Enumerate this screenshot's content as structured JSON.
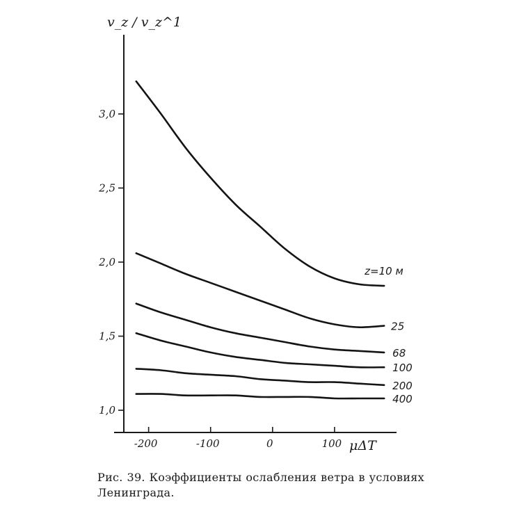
{
  "chart_data": {
    "type": "line",
    "ylabel": "v_z / v_z^1",
    "xlabel": "μΔT",
    "xlim": [
      -240,
      200
    ],
    "ylim": [
      0.85,
      3.45
    ],
    "xticks": [
      -200,
      -100,
      0,
      100
    ],
    "xtick_labels": [
      "-200",
      "-100",
      "0",
      "100"
    ],
    "yticks": [
      1.0,
      1.5,
      2.0,
      2.5,
      3.0
    ],
    "ytick_labels": [
      "1,0",
      "1,5",
      "2,0",
      "2,5",
      "3,0"
    ],
    "grid": false,
    "legend": "none",
    "series": [
      {
        "name": "z=10 м",
        "x": [
          -220,
          -180,
          -140,
          -100,
          -60,
          -20,
          20,
          60,
          100,
          140,
          180
        ],
        "y": [
          3.22,
          3.0,
          2.77,
          2.57,
          2.39,
          2.24,
          2.09,
          1.97,
          1.89,
          1.85,
          1.84
        ]
      },
      {
        "name": "25",
        "x": [
          -220,
          -180,
          -140,
          -100,
          -60,
          -20,
          20,
          60,
          100,
          140,
          180
        ],
        "y": [
          2.06,
          1.99,
          1.92,
          1.86,
          1.8,
          1.74,
          1.68,
          1.62,
          1.58,
          1.56,
          1.57
        ]
      },
      {
        "name": "68",
        "x": [
          -220,
          -180,
          -140,
          -100,
          -60,
          -20,
          20,
          60,
          100,
          140,
          180
        ],
        "y": [
          1.72,
          1.66,
          1.61,
          1.56,
          1.52,
          1.49,
          1.46,
          1.43,
          1.41,
          1.4,
          1.39
        ]
      },
      {
        "name": "100",
        "x": [
          -220,
          -180,
          -140,
          -100,
          -60,
          -20,
          20,
          60,
          100,
          140,
          180
        ],
        "y": [
          1.52,
          1.47,
          1.43,
          1.39,
          1.36,
          1.34,
          1.32,
          1.31,
          1.3,
          1.29,
          1.29
        ]
      },
      {
        "name": "200",
        "x": [
          -220,
          -180,
          -140,
          -100,
          -60,
          -20,
          20,
          60,
          100,
          140,
          180
        ],
        "y": [
          1.28,
          1.27,
          1.25,
          1.24,
          1.23,
          1.21,
          1.2,
          1.19,
          1.19,
          1.18,
          1.17
        ]
      },
      {
        "name": "400",
        "x": [
          -220,
          -180,
          -140,
          -100,
          -60,
          -20,
          20,
          60,
          100,
          140,
          180
        ],
        "y": [
          1.11,
          1.11,
          1.1,
          1.1,
          1.1,
          1.09,
          1.09,
          1.09,
          1.08,
          1.08,
          1.08
        ]
      }
    ]
  },
  "caption": "Рис. 39. Коэффициенты ослабления ветра в условиях Ленинграда."
}
